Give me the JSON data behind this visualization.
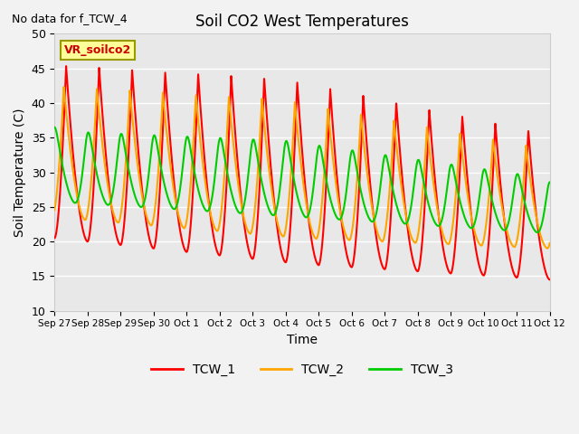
{
  "title": "Soil CO2 West Temperatures",
  "xlabel": "Time",
  "ylabel": "Soil Temperature (C)",
  "top_left_text": "No data for f_TCW_4",
  "annotation_text": "VR_soilco2",
  "ylim": [
    10,
    50
  ],
  "xtick_labels": [
    "Sep 27",
    "Sep 28",
    "Sep 29",
    "Sep 30",
    "Oct 1",
    "Oct 2",
    "Oct 3",
    "Oct 4",
    "Oct 5",
    "Oct 6",
    "Oct 7",
    "Oct 8",
    "Oct 9",
    "Oct 10",
    "Oct 11",
    "Oct 12"
  ],
  "ytick_values": [
    10,
    15,
    20,
    25,
    30,
    35,
    40,
    45,
    50
  ],
  "colors": {
    "TCW_1": "#ff0000",
    "TCW_2": "#ffa500",
    "TCW_3": "#00cc00"
  },
  "background_color": "#e8e8e8",
  "grid_color": "#ffffff",
  "annotation_box_color": "#ffff99",
  "annotation_box_edge": "#999900",
  "fig_width": 6.4,
  "fig_height": 4.8,
  "dpi": 100
}
